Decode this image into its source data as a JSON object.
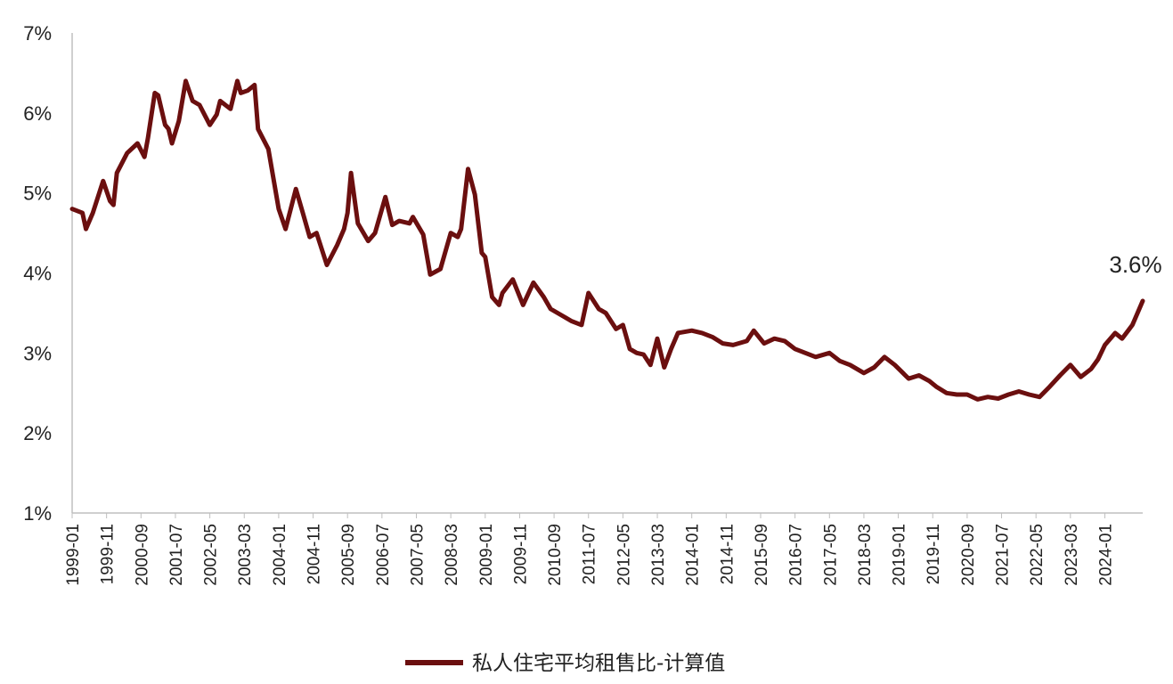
{
  "chart_data": {
    "type": "line",
    "title": "",
    "xlabel": "",
    "ylabel": "",
    "ylim": [
      0.01,
      0.07
    ],
    "y_ticks": [
      "1%",
      "2%",
      "3%",
      "4%",
      "5%",
      "6%",
      "7%"
    ],
    "x_range": [
      "1999-01",
      "2024-12"
    ],
    "x_ticks": [
      "1999-01",
      "1999-11",
      "2000-09",
      "2001-07",
      "2002-05",
      "2003-03",
      "2004-01",
      "2004-11",
      "2005-09",
      "2006-07",
      "2007-05",
      "2008-03",
      "2009-01",
      "2009-11",
      "2010-09",
      "2011-07",
      "2012-05",
      "2013-03",
      "2014-01",
      "2014-11",
      "2015-09",
      "2016-07",
      "2017-05",
      "2018-03",
      "2019-01",
      "2019-11",
      "2020-09",
      "2021-07",
      "2022-05",
      "2023-03",
      "2024-01"
    ],
    "grid": false,
    "legend_position": "bottom-center",
    "line_color": "#6B0F0F",
    "annotation": "3.6%",
    "series": [
      {
        "name": "私人住宅平均租售比-计算值",
        "x": [
          "1999-01",
          "1999-04",
          "1999-05",
          "1999-07",
          "1999-10",
          "1999-12",
          "2000-01",
          "2000-02",
          "2000-05",
          "2000-08",
          "2000-10",
          "2000-11",
          "2001-01",
          "2001-02",
          "2001-04",
          "2001-05",
          "2001-06",
          "2001-08",
          "2001-10",
          "2001-12",
          "2002-02",
          "2002-05",
          "2002-07",
          "2002-08",
          "2002-11",
          "2003-01",
          "2003-02",
          "2003-04",
          "2003-06",
          "2003-07",
          "2003-10",
          "2004-01",
          "2004-03",
          "2004-06",
          "2004-08",
          "2004-10",
          "2004-12",
          "2005-03",
          "2005-06",
          "2005-08",
          "2005-09",
          "2005-10",
          "2005-12",
          "2006-03",
          "2006-05",
          "2006-08",
          "2006-10",
          "2006-12",
          "2007-03",
          "2007-04",
          "2007-07",
          "2007-09",
          "2007-12",
          "2008-03",
          "2008-05",
          "2008-06",
          "2008-08",
          "2008-10",
          "2008-12",
          "2009-01",
          "2009-03",
          "2009-05",
          "2009-06",
          "2009-09",
          "2009-12",
          "2010-03",
          "2010-06",
          "2010-08",
          "2010-12",
          "2011-02",
          "2011-05",
          "2011-07",
          "2011-10",
          "2011-12",
          "2012-03",
          "2012-05",
          "2012-07",
          "2012-09",
          "2012-11",
          "2013-01",
          "2013-03",
          "2013-05",
          "2013-07",
          "2013-09",
          "2014-01",
          "2014-04",
          "2014-07",
          "2014-10",
          "2015-01",
          "2015-05",
          "2015-07",
          "2015-10",
          "2016-01",
          "2016-04",
          "2016-07",
          "2016-10",
          "2017-01",
          "2017-05",
          "2017-08",
          "2017-11",
          "2018-03",
          "2018-06",
          "2018-09",
          "2018-12",
          "2019-04",
          "2019-07",
          "2019-10",
          "2019-12",
          "2020-03",
          "2020-06",
          "2020-09",
          "2020-12",
          "2021-03",
          "2021-06",
          "2021-09",
          "2021-12",
          "2022-03",
          "2022-06",
          "2022-09",
          "2022-12",
          "2023-03",
          "2023-06",
          "2023-09",
          "2023-11",
          "2024-01",
          "2024-04",
          "2024-06",
          "2024-09",
          "2024-12"
        ],
        "values": [
          0.048,
          0.0475,
          0.0455,
          0.0475,
          0.0515,
          0.049,
          0.0485,
          0.0525,
          0.055,
          0.0562,
          0.0545,
          0.0568,
          0.0625,
          0.0622,
          0.0585,
          0.058,
          0.0562,
          0.059,
          0.064,
          0.0615,
          0.061,
          0.0585,
          0.0598,
          0.0615,
          0.0605,
          0.064,
          0.0625,
          0.0628,
          0.0635,
          0.058,
          0.0555,
          0.048,
          0.0455,
          0.0505,
          0.0475,
          0.0445,
          0.045,
          0.041,
          0.0435,
          0.0455,
          0.0475,
          0.0525,
          0.0462,
          0.044,
          0.045,
          0.0495,
          0.046,
          0.0465,
          0.0462,
          0.047,
          0.0448,
          0.0398,
          0.0405,
          0.045,
          0.0445,
          0.0455,
          0.053,
          0.0498,
          0.0425,
          0.042,
          0.037,
          0.036,
          0.0375,
          0.0392,
          0.036,
          0.0388,
          0.037,
          0.0355,
          0.0345,
          0.034,
          0.0335,
          0.0375,
          0.0355,
          0.035,
          0.033,
          0.0335,
          0.0305,
          0.03,
          0.0298,
          0.0285,
          0.0318,
          0.0282,
          0.0305,
          0.0325,
          0.0328,
          0.0325,
          0.032,
          0.0312,
          0.031,
          0.0315,
          0.0328,
          0.0312,
          0.0318,
          0.0315,
          0.0305,
          0.03,
          0.0295,
          0.03,
          0.029,
          0.0285,
          0.0275,
          0.0282,
          0.0295,
          0.0285,
          0.0268,
          0.0272,
          0.0265,
          0.0258,
          0.025,
          0.0248,
          0.0248,
          0.0242,
          0.0245,
          0.0243,
          0.0248,
          0.0252,
          0.0248,
          0.0245,
          0.0258,
          0.0272,
          0.0285,
          0.027,
          0.028,
          0.0292,
          0.031,
          0.0325,
          0.0318,
          0.0335,
          0.0365
        ]
      }
    ]
  }
}
